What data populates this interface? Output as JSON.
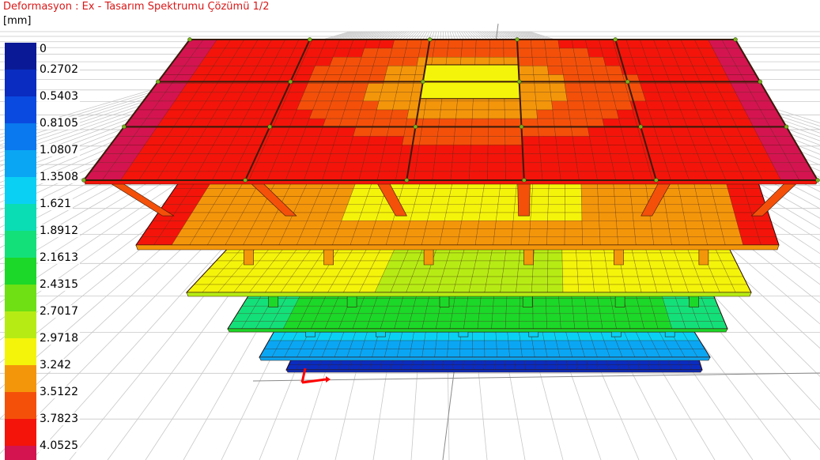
{
  "header": {
    "title": "Deformasyon : Ex  -  Tasarım Spektrumu Çözümü 1/2",
    "unit": "[mm]"
  },
  "legend": {
    "items": [
      {
        "label": "0",
        "color": "#0a1a96"
      },
      {
        "label": "0.2702",
        "color": "#0a2cc0"
      },
      {
        "label": "0.5403",
        "color": "#0a4ae0"
      },
      {
        "label": "0.8105",
        "color": "#0a78ee"
      },
      {
        "label": "1.0807",
        "color": "#0aa6f4"
      },
      {
        "label": "1.3508",
        "color": "#0ad0f4"
      },
      {
        "label": "1.621",
        "color": "#0adcb4"
      },
      {
        "label": "1.8912",
        "color": "#14e07a"
      },
      {
        "label": "2.1613",
        "color": "#1cd828"
      },
      {
        "label": "2.4315",
        "color": "#6ee014"
      },
      {
        "label": "2.7017",
        "color": "#b6ec14"
      },
      {
        "label": "2.9718",
        "color": "#f4f40a"
      },
      {
        "label": "3.242",
        "color": "#f4960a"
      },
      {
        "label": "3.5122",
        "color": "#f4500a"
      },
      {
        "label": "3.7823",
        "color": "#f4140a"
      },
      {
        "label": "4.0525",
        "color": "#d41450"
      }
    ]
  },
  "model": {
    "background": "#ffffff",
    "grid_color": "#c8c8c8",
    "mesh_color": "#3a1a0a",
    "axis_x_color": "#ff0000",
    "axis_y_color": "#00a000"
  }
}
